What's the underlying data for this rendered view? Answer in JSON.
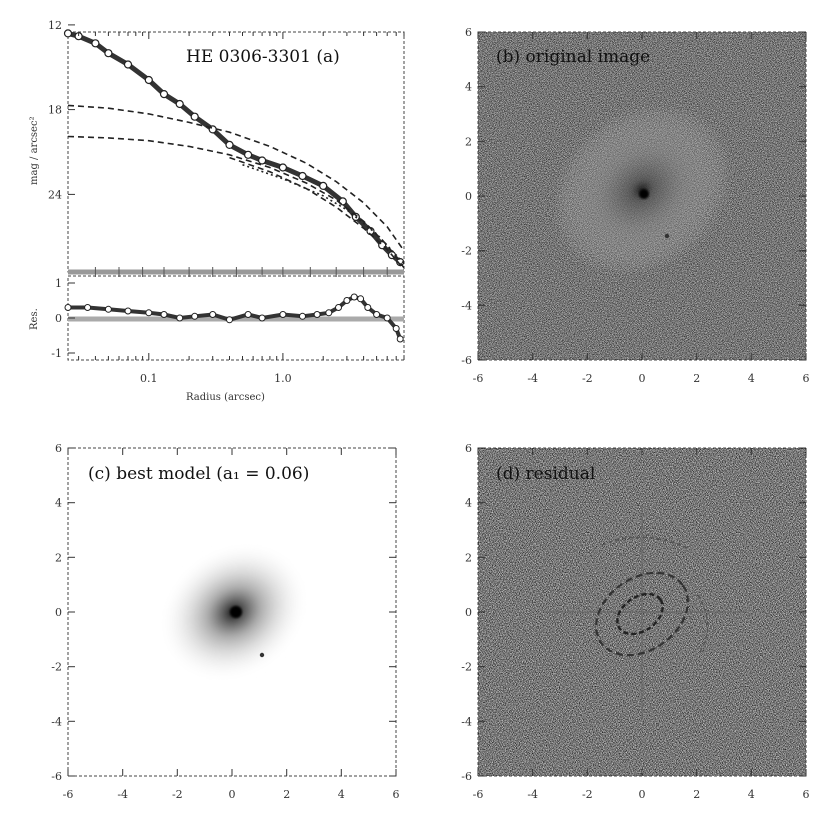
{
  "chart_data": [
    {
      "type": "line",
      "panel": "a",
      "title": "HE 0306-3301 (a)",
      "xlabel": "Radius (arcsec)",
      "ylabel": "mag / arcsec²",
      "xscale": "log",
      "xlim": [
        0.025,
        8
      ],
      "ylim": [
        29.5,
        12.5
      ],
      "xticks": [
        "0.1",
        "1.0"
      ],
      "yticks": [
        "12",
        "18",
        "24"
      ],
      "series": [
        {
          "style": "data-points",
          "x": [
            0.025,
            0.03,
            0.04,
            0.05,
            0.07,
            0.1,
            0.13,
            0.17,
            0.22,
            0.3,
            0.4,
            0.55,
            0.7,
            1.0,
            1.4,
            2.0,
            2.8,
            3.5,
            4.5,
            5.5,
            6.5,
            7.5
          ],
          "y": [
            12.6,
            12.8,
            13.3,
            14.0,
            14.8,
            15.9,
            16.9,
            17.6,
            18.5,
            19.4,
            20.5,
            21.2,
            21.6,
            22.1,
            22.7,
            23.4,
            24.5,
            25.6,
            26.6,
            27.6,
            28.3,
            28.8
          ]
        },
        {
          "style": "dashed",
          "x": [
            0.025,
            0.05,
            0.1,
            0.2,
            0.4,
            0.8,
            1.5,
            2.5,
            4,
            6,
            8
          ],
          "y": [
            17.7,
            17.9,
            18.3,
            18.9,
            19.6,
            20.6,
            21.8,
            23.1,
            24.6,
            26.3,
            28.0
          ]
        },
        {
          "style": "dashed",
          "x": [
            0.025,
            0.05,
            0.1,
            0.2,
            0.4,
            0.8,
            1.5,
            2.5,
            4,
            6,
            8
          ],
          "y": [
            19.9,
            20.0,
            20.2,
            20.6,
            21.2,
            22.1,
            23.2,
            24.4,
            25.9,
            27.6,
            29.2
          ]
        },
        {
          "style": "dashed",
          "x": [
            0.4,
            0.8,
            1.5,
            2.5,
            4,
            6,
            8
          ],
          "y": [
            21.4,
            22.4,
            23.6,
            24.9,
            26.4,
            27.9,
            29.3
          ]
        },
        {
          "style": "dotted",
          "x": [
            0.5,
            1.0,
            2.0,
            3.0,
            5.0,
            8.0
          ],
          "y": [
            21.9,
            22.9,
            24.1,
            25.1,
            26.8,
            28.9
          ]
        }
      ]
    },
    {
      "type": "line",
      "panel": "a-residual",
      "ylabel": "Res.",
      "xscale": "log",
      "xlim": [
        0.025,
        8
      ],
      "ylim": [
        -1.2,
        1.2
      ],
      "yticks": [
        "1",
        "0",
        "-1"
      ],
      "x": [
        0.025,
        0.035,
        0.05,
        0.07,
        0.1,
        0.13,
        0.17,
        0.22,
        0.3,
        0.4,
        0.55,
        0.7,
        1.0,
        1.4,
        1.8,
        2.2,
        2.6,
        3.0,
        3.4,
        3.8,
        4.3,
        5.0,
        6.0,
        7.0,
        7.5
      ],
      "y": [
        0.3,
        0.3,
        0.25,
        0.2,
        0.15,
        0.1,
        0.0,
        0.05,
        0.1,
        -0.05,
        0.1,
        0.0,
        0.1,
        0.05,
        0.1,
        0.15,
        0.3,
        0.5,
        0.6,
        0.55,
        0.3,
        0.1,
        0.0,
        -0.3,
        -0.6
      ]
    },
    {
      "type": "heatmap",
      "panel": "b",
      "title": "(b) original image",
      "xlim": [
        -6,
        6
      ],
      "ylim": [
        -6,
        6
      ],
      "xticks": [
        "-6",
        "-4",
        "-2",
        "0",
        "2",
        "4",
        "6"
      ],
      "yticks": [
        "6",
        "4",
        "2",
        "0",
        "-2",
        "-4",
        "-6"
      ]
    },
    {
      "type": "heatmap",
      "panel": "c",
      "title": "(c) best model (a₁ = 0.06)",
      "xlim": [
        -6,
        6
      ],
      "ylim": [
        -6,
        6
      ],
      "xticks": [
        "-6",
        "-4",
        "-2",
        "0",
        "2",
        "4",
        "6"
      ],
      "yticks": [
        "6",
        "4",
        "2",
        "0",
        "-2",
        "-4",
        "-6"
      ]
    },
    {
      "type": "heatmap",
      "panel": "d",
      "title": "(d) residual",
      "xlim": [
        -6,
        6
      ],
      "ylim": [
        -6,
        6
      ],
      "xticks": [
        "-6",
        "-4",
        "-2",
        "0",
        "2",
        "4",
        "6"
      ],
      "yticks": [
        "6",
        "4",
        "2",
        "0",
        "-2",
        "-4",
        "-6"
      ]
    }
  ]
}
